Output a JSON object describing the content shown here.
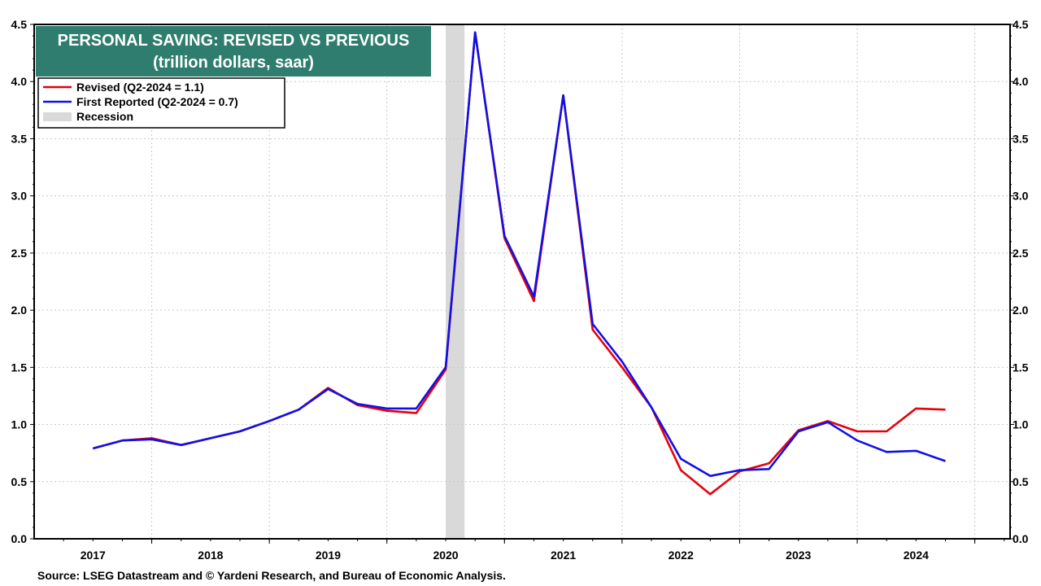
{
  "chart_data": {
    "type": "line",
    "title": "PERSONAL SAVING: REVISED VS PREVIOUS",
    "subtitle": "(trillion dollars, saar)",
    "ylim": [
      0,
      4.5
    ],
    "y_ticks": [
      "0.0",
      "0.5",
      "1.0",
      "1.5",
      "2.0",
      "2.5",
      "3.0",
      "3.5",
      "4.0",
      "4.5"
    ],
    "x_tick_labels": [
      "2017",
      "2018",
      "2019",
      "2020",
      "2021",
      "2022",
      "2023",
      "2024"
    ],
    "x_range": [
      2016.5,
      2024.8
    ],
    "grid": true,
    "legend_position": "top-left",
    "recession": {
      "label": "Recession",
      "start": 2020.0,
      "end": 2020.16,
      "color": "#d9d9d9"
    },
    "series": [
      {
        "name": "Revised (Q2-2024 = 1.1)",
        "color": "#e8000b",
        "x": [
          2017.0,
          2017.25,
          2017.5,
          2017.75,
          2018.0,
          2018.25,
          2018.5,
          2018.75,
          2019.0,
          2019.25,
          2019.5,
          2019.75,
          2020.0,
          2020.25,
          2020.5,
          2020.75,
          2021.0,
          2021.25,
          2021.5,
          2021.75,
          2022.0,
          2022.25,
          2022.5,
          2022.75,
          2023.0,
          2023.25,
          2023.5,
          2023.75,
          2024.0,
          2024.25
        ],
        "values": [
          0.79,
          0.86,
          0.88,
          0.82,
          0.88,
          0.94,
          1.03,
          1.13,
          1.32,
          1.17,
          1.12,
          1.1,
          1.48,
          4.43,
          2.63,
          2.08,
          3.88,
          1.83,
          1.5,
          1.15,
          0.6,
          0.39,
          0.59,
          0.66,
          0.95,
          1.03,
          0.94,
          0.94,
          1.14,
          1.13
        ]
      },
      {
        "name": "First Reported (Q2-2024 = 0.7)",
        "color": "#1010e6",
        "x": [
          2017.0,
          2017.25,
          2017.5,
          2017.75,
          2018.0,
          2018.25,
          2018.5,
          2018.75,
          2019.0,
          2019.25,
          2019.5,
          2019.75,
          2020.0,
          2020.25,
          2020.5,
          2020.75,
          2021.0,
          2021.25,
          2021.5,
          2021.75,
          2022.0,
          2022.25,
          2022.5,
          2022.75,
          2023.0,
          2023.25,
          2023.5,
          2023.75,
          2024.0,
          2024.25
        ],
        "values": [
          0.79,
          0.86,
          0.87,
          0.82,
          0.88,
          0.94,
          1.03,
          1.13,
          1.31,
          1.18,
          1.14,
          1.14,
          1.5,
          4.43,
          2.65,
          2.12,
          3.88,
          1.88,
          1.55,
          1.15,
          0.7,
          0.55,
          0.6,
          0.61,
          0.94,
          1.02,
          0.86,
          0.76,
          0.77,
          0.68
        ]
      }
    ],
    "title_box_color": "#2e7d6e",
    "source": "Source: LSEG Datastream and © Yardeni Research, and Bureau of Economic Analysis."
  }
}
